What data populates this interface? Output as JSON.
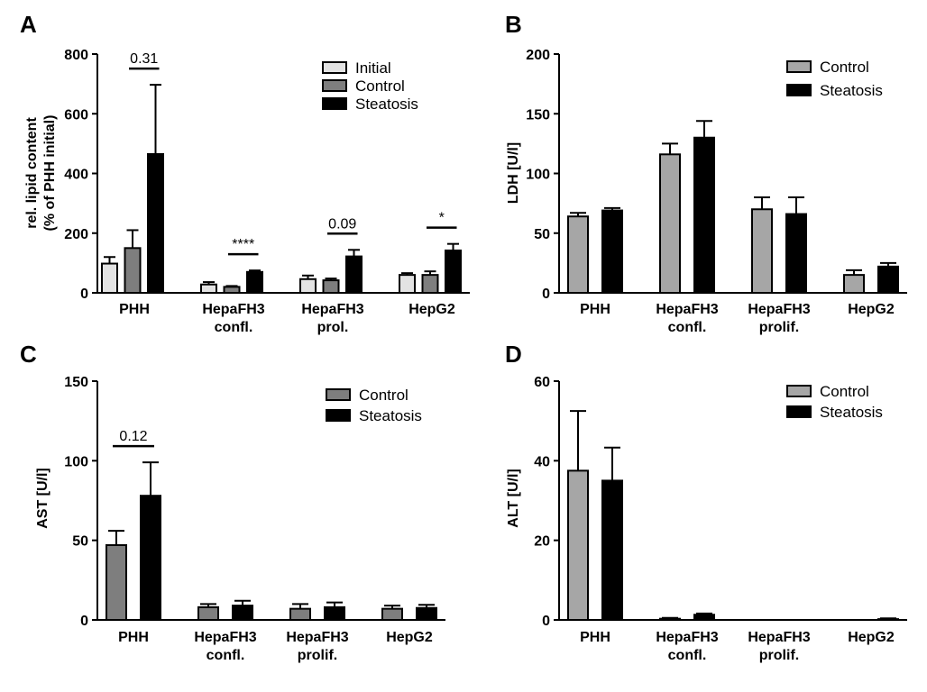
{
  "figure": {
    "panel_letters": [
      "A",
      "B",
      "C",
      "D"
    ]
  },
  "chart_data": [
    {
      "panel": "A",
      "type": "bar",
      "title": "",
      "xlabel": "",
      "ylabel": [
        "rel. lipid content",
        "(% of PHH initial)"
      ],
      "ylim": [
        0,
        800
      ],
      "yticks": [
        0,
        200,
        400,
        600,
        800
      ],
      "categories": [
        [
          "PHH"
        ],
        [
          "HepaFH3",
          "confl."
        ],
        [
          "HepaFH3",
          "prol."
        ],
        [
          "HepG2"
        ]
      ],
      "series": [
        {
          "name": "Initial",
          "color": "#e3e3e3",
          "values": [
            98,
            28,
            46,
            60
          ],
          "errors": [
            22,
            8,
            12,
            6
          ]
        },
        {
          "name": "Control",
          "color": "#7e7e7e",
          "values": [
            150,
            20,
            42,
            60
          ],
          "errors": [
            60,
            3,
            6,
            12
          ]
        },
        {
          "name": "Steatosis",
          "color": "#000000",
          "values": [
            465,
            70,
            122,
            142
          ],
          "errors": [
            232,
            5,
            22,
            22
          ]
        }
      ],
      "legend_position": "top-right",
      "annotations": [
        {
          "text": "0.31",
          "category": 0
        },
        {
          "text": "****",
          "category": 1
        },
        {
          "text": "0.09",
          "category": 2
        },
        {
          "text": "*",
          "category": 3
        }
      ]
    },
    {
      "panel": "B",
      "type": "bar",
      "title": "",
      "xlabel": "",
      "ylabel": [
        "LDH [U/l]"
      ],
      "ylim": [
        0,
        200
      ],
      "yticks": [
        0,
        50,
        100,
        150,
        200
      ],
      "categories": [
        [
          "PHH"
        ],
        [
          "HepaFH3",
          "confl."
        ],
        [
          "HepaFH3",
          "prolif."
        ],
        [
          "HepG2"
        ]
      ],
      "series": [
        {
          "name": "Control",
          "color": "#a6a6a6",
          "values": [
            64,
            116,
            70,
            15
          ],
          "errors": [
            3,
            9,
            10,
            4
          ]
        },
        {
          "name": "Steatosis",
          "color": "#000000",
          "values": [
            69,
            130,
            66,
            22
          ],
          "errors": [
            2,
            14,
            14,
            3
          ]
        }
      ],
      "legend_position": "top-right",
      "annotations": []
    },
    {
      "panel": "C",
      "type": "bar",
      "title": "",
      "xlabel": "",
      "ylabel": [
        "AST [U/l]"
      ],
      "ylim": [
        0,
        150
      ],
      "yticks": [
        0,
        50,
        100,
        150
      ],
      "categories": [
        [
          "PHH"
        ],
        [
          "HepaFH3",
          "confl."
        ],
        [
          "HepaFH3",
          "prolif."
        ],
        [
          "HepG2"
        ]
      ],
      "series": [
        {
          "name": "Control",
          "color": "#7e7e7e",
          "values": [
            47,
            8,
            7,
            7
          ],
          "errors": [
            9,
            2,
            3,
            2
          ]
        },
        {
          "name": "Steatosis",
          "color": "#000000",
          "values": [
            78,
            9,
            8,
            7.5
          ],
          "errors": [
            21,
            3,
            3,
            2
          ]
        }
      ],
      "legend_position": "top-right",
      "annotations": [
        {
          "text": "0.12",
          "category": 0
        }
      ]
    },
    {
      "panel": "D",
      "type": "bar",
      "title": "",
      "xlabel": "",
      "ylabel": [
        "ALT [U/l]"
      ],
      "ylim": [
        0,
        60
      ],
      "yticks": [
        0,
        20,
        40,
        60
      ],
      "categories": [
        [
          "PHH"
        ],
        [
          "HepaFH3",
          "confl."
        ],
        [
          "HepaFH3",
          "prolif."
        ],
        [
          "HepG2"
        ]
      ],
      "series": [
        {
          "name": "Control",
          "color": "#a6a6a6",
          "values": [
            37.5,
            0.3,
            0,
            0
          ],
          "errors": [
            15,
            0.2,
            0,
            0
          ]
        },
        {
          "name": "Steatosis",
          "color": "#000000",
          "values": [
            35,
            1.3,
            0,
            0.2
          ],
          "errors": [
            8.3,
            0.3,
            0,
            0.2
          ]
        }
      ],
      "legend_position": "top-right",
      "annotations": []
    }
  ]
}
